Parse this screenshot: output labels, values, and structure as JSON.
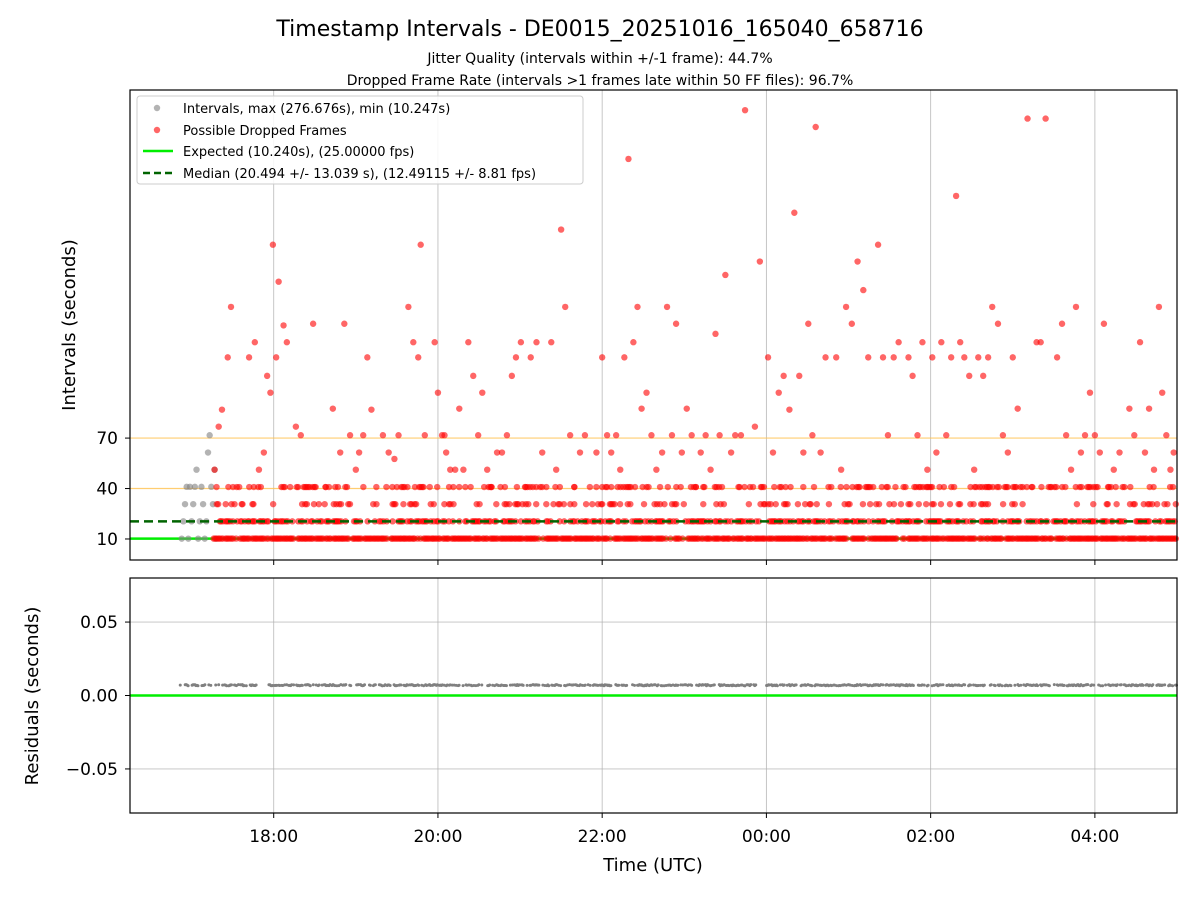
{
  "chart_data": {
    "type": "scatter",
    "title": "Timestamp Intervals - DE0015_20251016_165040_658716",
    "subtitle_lines": [
      "Jitter Quality (intervals within +/-1 frame): 44.7%",
      "Dropped Frame Rate (intervals >1 frames late within 50 FF files): 96.7%"
    ],
    "xlabel": "Time (UTC)",
    "x_ticks": [
      "18:00",
      "20:00",
      "22:00",
      "00:00",
      "02:00",
      "04:00"
    ],
    "x_tick_hours": [
      18,
      20,
      22,
      24,
      26,
      28
    ],
    "xlim_hours": [
      16.25,
      29.0
    ],
    "data_start_hours": 16.85,
    "data_end_hours": 29.0,
    "top_panel": {
      "ylabel": "Intervals (seconds)",
      "y_ticks": [
        10,
        40,
        70
      ],
      "ylim": [
        -2.5,
        277
      ],
      "reference_lines": [
        {
          "y": 40,
          "color": "#ffc04d"
        },
        {
          "y": 70,
          "color": "#ffc04d"
        }
      ],
      "expected_interval": 10.24,
      "median_interval": 20.494,
      "legend": {
        "position": "upper-left",
        "entries": [
          {
            "label": "Intervals, max (276.676s), min (10.247s)",
            "marker": "circle",
            "color": "#808080"
          },
          {
            "label": "Possible Dropped Frames",
            "marker": "circle",
            "color": "#ff0000"
          },
          {
            "label": "Expected (10.240s), (25.00000 fps)",
            "marker": "line",
            "color": "#00ee00"
          },
          {
            "label": "Median (20.494 +/- 13.039 s), (12.49115 +/- 8.81 fps)",
            "marker": "dashed-line",
            "color": "#006400"
          }
        ]
      },
      "normal_interval_points": [
        [
          16.88,
          10.2
        ],
        [
          16.9,
          20.5
        ],
        [
          16.92,
          30.7
        ],
        [
          16.94,
          41
        ],
        [
          16.96,
          10.2
        ],
        [
          16.98,
          41
        ],
        [
          17.0,
          20.5
        ],
        [
          17.02,
          30.7
        ],
        [
          17.04,
          41
        ],
        [
          17.06,
          51.2
        ],
        [
          17.08,
          10.2
        ],
        [
          17.1,
          20.5
        ],
        [
          17.12,
          41
        ],
        [
          17.14,
          30.7
        ],
        [
          17.16,
          10.2
        ],
        [
          17.18,
          20.5
        ],
        [
          17.2,
          61.4
        ],
        [
          17.22,
          71.7
        ],
        [
          17.24,
          41
        ],
        [
          17.26,
          30.7
        ],
        [
          17.28,
          51.2
        ],
        [
          17.3,
          10.2
        ]
      ],
      "dropped_frame_points": [
        [
          17.28,
          51.2
        ],
        [
          17.33,
          76.8
        ],
        [
          17.37,
          86.9
        ],
        [
          17.44,
          118
        ],
        [
          17.48,
          148
        ],
        [
          17.55,
          40.9
        ],
        [
          17.62,
          30.7
        ],
        [
          17.7,
          118
        ],
        [
          17.77,
          127
        ],
        [
          17.82,
          51.2
        ],
        [
          17.88,
          61.4
        ],
        [
          17.92,
          107
        ],
        [
          17.96,
          97
        ],
        [
          17.99,
          185
        ],
        [
          18.03,
          118
        ],
        [
          18.06,
          163
        ],
        [
          18.12,
          137
        ],
        [
          18.16,
          127
        ],
        [
          18.2,
          40.9
        ],
        [
          18.27,
          76.8
        ],
        [
          18.33,
          71.7
        ],
        [
          18.4,
          40.9
        ],
        [
          18.48,
          138
        ],
        [
          18.55,
          30.7
        ],
        [
          18.63,
          40.9
        ],
        [
          18.72,
          87.5
        ],
        [
          18.81,
          61.4
        ],
        [
          18.86,
          138
        ],
        [
          18.93,
          71.7
        ],
        [
          19.0,
          51.2
        ],
        [
          19.04,
          61.4
        ],
        [
          19.09,
          71.7
        ],
        [
          19.14,
          118
        ],
        [
          19.19,
          86.9
        ],
        [
          19.25,
          40.9
        ],
        [
          19.33,
          71.7
        ],
        [
          19.4,
          61.4
        ],
        [
          19.47,
          57.6
        ],
        [
          19.52,
          71.7
        ],
        [
          19.58,
          30.7
        ],
        [
          19.64,
          148
        ],
        [
          19.7,
          127
        ],
        [
          19.76,
          118
        ],
        [
          19.79,
          185
        ],
        [
          19.84,
          71.7
        ],
        [
          19.9,
          40.9
        ],
        [
          19.96,
          127
        ],
        [
          20.0,
          97
        ],
        [
          20.05,
          71.7
        ],
        [
          20.08,
          71.7
        ],
        [
          20.1,
          61.4
        ],
        [
          20.15,
          51.2
        ],
        [
          20.21,
          51.2
        ],
        [
          20.26,
          87.5
        ],
        [
          20.31,
          51.2
        ],
        [
          20.37,
          127
        ],
        [
          20.43,
          107
        ],
        [
          20.49,
          71.7
        ],
        [
          20.54,
          97
        ],
        [
          20.6,
          51.2
        ],
        [
          20.65,
          40.9
        ],
        [
          20.72,
          61.4
        ],
        [
          20.78,
          61.4
        ],
        [
          20.84,
          71.7
        ],
        [
          20.9,
          107
        ],
        [
          20.95,
          118
        ],
        [
          21.01,
          127
        ],
        [
          21.06,
          40.9
        ],
        [
          21.13,
          118
        ],
        [
          21.2,
          127
        ],
        [
          21.27,
          61.4
        ],
        [
          21.32,
          40.9
        ],
        [
          21.38,
          127
        ],
        [
          21.44,
          51.2
        ],
        [
          21.5,
          194
        ],
        [
          21.55,
          148
        ],
        [
          21.61,
          71.7
        ],
        [
          21.66,
          40.9
        ],
        [
          21.73,
          61.4
        ],
        [
          21.79,
          71.7
        ],
        [
          21.85,
          40.9
        ],
        [
          21.93,
          61.4
        ],
        [
          22.0,
          118
        ],
        [
          22.06,
          71.7
        ],
        [
          22.11,
          61.4
        ],
        [
          22.17,
          71.7
        ],
        [
          22.22,
          51.2
        ],
        [
          22.27,
          118
        ],
        [
          22.32,
          236
        ],
        [
          22.38,
          127
        ],
        [
          22.43,
          148
        ],
        [
          22.48,
          87.5
        ],
        [
          22.54,
          97
        ],
        [
          22.6,
          71.7
        ],
        [
          22.66,
          51.2
        ],
        [
          22.73,
          61.4
        ],
        [
          22.79,
          148
        ],
        [
          22.85,
          71.7
        ],
        [
          22.9,
          138
        ],
        [
          22.97,
          61.4
        ],
        [
          23.03,
          87.5
        ],
        [
          23.09,
          71.7
        ],
        [
          23.14,
          40.9
        ],
        [
          23.2,
          61.4
        ],
        [
          23.26,
          71.7
        ],
        [
          23.32,
          51.2
        ],
        [
          23.38,
          132
        ],
        [
          23.43,
          71.7
        ],
        [
          23.5,
          167
        ],
        [
          23.57,
          61.4
        ],
        [
          23.62,
          71.7
        ],
        [
          23.69,
          71.7
        ],
        [
          23.74,
          265
        ],
        [
          23.8,
          40.9
        ],
        [
          23.86,
          76.8
        ],
        [
          23.92,
          175
        ],
        [
          23.97,
          40.9
        ],
        [
          24.02,
          118
        ],
        [
          24.08,
          61.4
        ],
        [
          24.15,
          97
        ],
        [
          24.21,
          107
        ],
        [
          24.28,
          86.9
        ],
        [
          24.34,
          204
        ],
        [
          24.4,
          107
        ],
        [
          24.45,
          61.4
        ],
        [
          24.51,
          138
        ],
        [
          24.56,
          71.7
        ],
        [
          24.6,
          255
        ],
        [
          24.66,
          61.4
        ],
        [
          24.72,
          118
        ],
        [
          24.79,
          40.9
        ],
        [
          24.85,
          118
        ],
        [
          24.91,
          51.2
        ],
        [
          24.97,
          148
        ],
        [
          25.04,
          138
        ],
        [
          25.11,
          175
        ],
        [
          25.18,
          158
        ],
        [
          25.24,
          118
        ],
        [
          25.3,
          40.9
        ],
        [
          25.36,
          185
        ],
        [
          25.42,
          118
        ],
        [
          25.48,
          71.7
        ],
        [
          25.55,
          118
        ],
        [
          25.61,
          127
        ],
        [
          25.67,
          40.9
        ],
        [
          25.73,
          118
        ],
        [
          25.78,
          107
        ],
        [
          25.84,
          71.7
        ],
        [
          25.9,
          127
        ],
        [
          25.96,
          51.2
        ],
        [
          26.02,
          118
        ],
        [
          26.07,
          61.4
        ],
        [
          26.13,
          127
        ],
        [
          26.19,
          71.7
        ],
        [
          26.25,
          118
        ],
        [
          26.31,
          214
        ],
        [
          26.36,
          127
        ],
        [
          26.41,
          118
        ],
        [
          26.47,
          107
        ],
        [
          26.53,
          51.2
        ],
        [
          26.58,
          118
        ],
        [
          26.64,
          107
        ],
        [
          26.7,
          118
        ],
        [
          26.75,
          148
        ],
        [
          26.82,
          138
        ],
        [
          26.88,
          71.7
        ],
        [
          26.94,
          61.4
        ],
        [
          27.0,
          118
        ],
        [
          27.06,
          87.5
        ],
        [
          27.12,
          40.9
        ],
        [
          27.18,
          260
        ],
        [
          27.23,
          40.9
        ],
        [
          27.29,
          127
        ],
        [
          27.34,
          127
        ],
        [
          27.4,
          260
        ],
        [
          27.47,
          40.9
        ],
        [
          27.54,
          118
        ],
        [
          27.6,
          138
        ],
        [
          27.65,
          71.7
        ],
        [
          27.71,
          51.2
        ],
        [
          27.77,
          148
        ],
        [
          27.83,
          61.4
        ],
        [
          27.88,
          71.7
        ],
        [
          27.94,
          97
        ],
        [
          28.0,
          71.7
        ],
        [
          28.06,
          61.4
        ],
        [
          28.11,
          138
        ],
        [
          28.17,
          40.9
        ],
        [
          28.23,
          51.2
        ],
        [
          28.3,
          61.4
        ],
        [
          28.36,
          40.9
        ],
        [
          28.42,
          87.5
        ],
        [
          28.48,
          71.7
        ],
        [
          28.55,
          127
        ],
        [
          28.61,
          61.4
        ],
        [
          28.66,
          87.5
        ],
        [
          28.72,
          51.2
        ],
        [
          28.78,
          148
        ],
        [
          28.82,
          97
        ],
        [
          28.87,
          71.7
        ],
        [
          28.92,
          51.2
        ],
        [
          28.96,
          61.4
        ]
      ],
      "dropped_band_levels": [
        10.24,
        20.49,
        30.7,
        40.9
      ],
      "dropped_band_start_hours": 17.27,
      "normal_points_start_hours": 16.88
    },
    "bottom_panel": {
      "ylabel": "Residuals (seconds)",
      "y_ticks": [
        0.05,
        0.0,
        -0.05
      ],
      "y_tick_labels": [
        "0.05",
        "0.00",
        "−0.05"
      ],
      "ylim": [
        -0.08,
        0.08
      ],
      "residual_value": 0.007,
      "zero_line_color": "#00ee00",
      "point_color": "#808080",
      "gap_hours": [
        [
          17.8,
          17.9
        ],
        [
          22.3,
          22.35
        ],
        [
          23.1,
          23.15
        ],
        [
          23.9,
          24.0
        ],
        [
          25.8,
          25.85
        ],
        [
          27.45,
          27.5
        ]
      ]
    }
  }
}
